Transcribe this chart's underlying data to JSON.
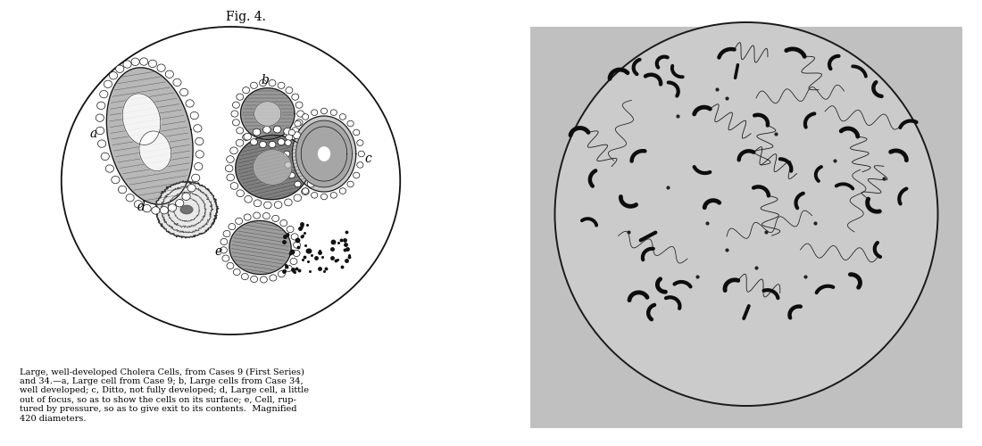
{
  "fig_title": "Fig. 4.",
  "caption_text": "Large, well-developed Cholera Cells, from Cases 9 (First Series)\nand 34.—a, Large cell from Case 9; b, Large cells from Case 34,\nwell developed; c, Ditto, not fully developed; d, Large cell, a little\nout of focus, so as to show the cells on its surface; e, Cell, rup-\ntured by pressure, so as to give exit to its contents.  Magnified\n420 diameters.",
  "bg_color": "#ffffff",
  "right_bg_color": "#c8c8c8",
  "circle_inner_color": "#d0d0d0",
  "bacteria_color": "#111111"
}
